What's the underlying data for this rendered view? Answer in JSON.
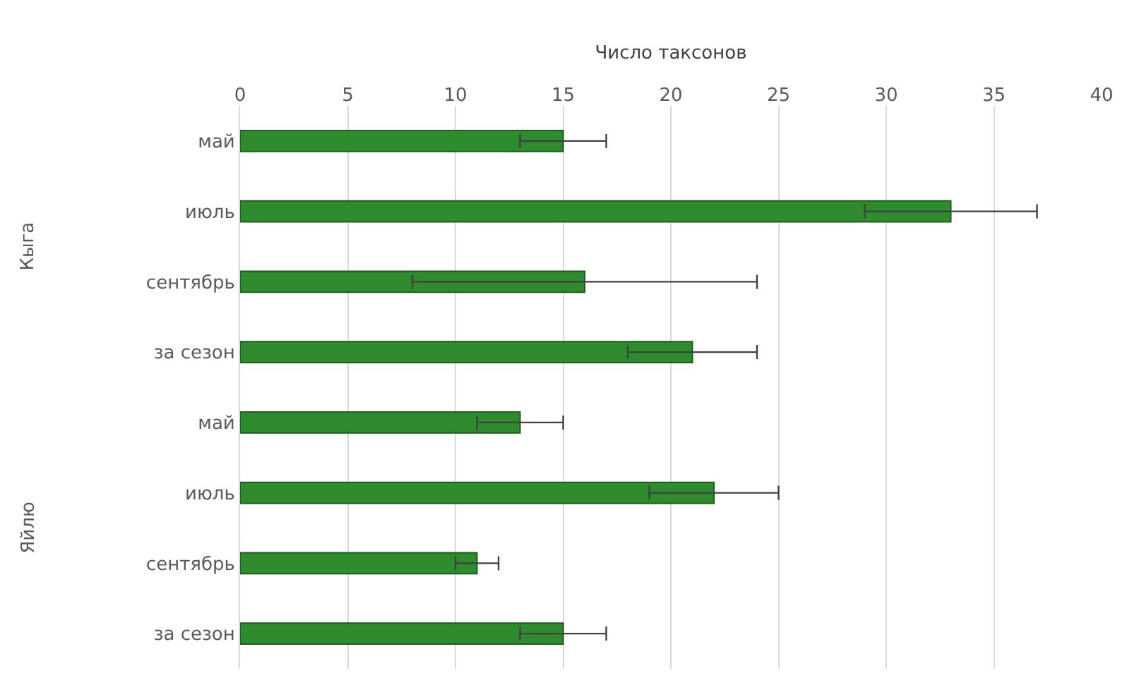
{
  "chart_data": {
    "type": "bar",
    "orientation": "horizontal",
    "xlabel": "Число таксонов",
    "categories": [
      "май",
      "июль",
      "сентябрь",
      "за сезон",
      "май",
      "июль",
      "сентябрь",
      "за сезон"
    ],
    "values": [
      15,
      33,
      16,
      21,
      13,
      22,
      11,
      15
    ],
    "errors": [
      2,
      4,
      8,
      3,
      2,
      3,
      1,
      2
    ],
    "color": "#2e8b2e",
    "annotations": [
      "Кыга",
      "Яйлю"
    ],
    "xlim": [
      0,
      40
    ],
    "xticks": [
      0,
      5,
      10,
      15,
      20,
      25,
      30,
      35,
      40
    ],
    "grid": "x",
    "legend": false
  }
}
